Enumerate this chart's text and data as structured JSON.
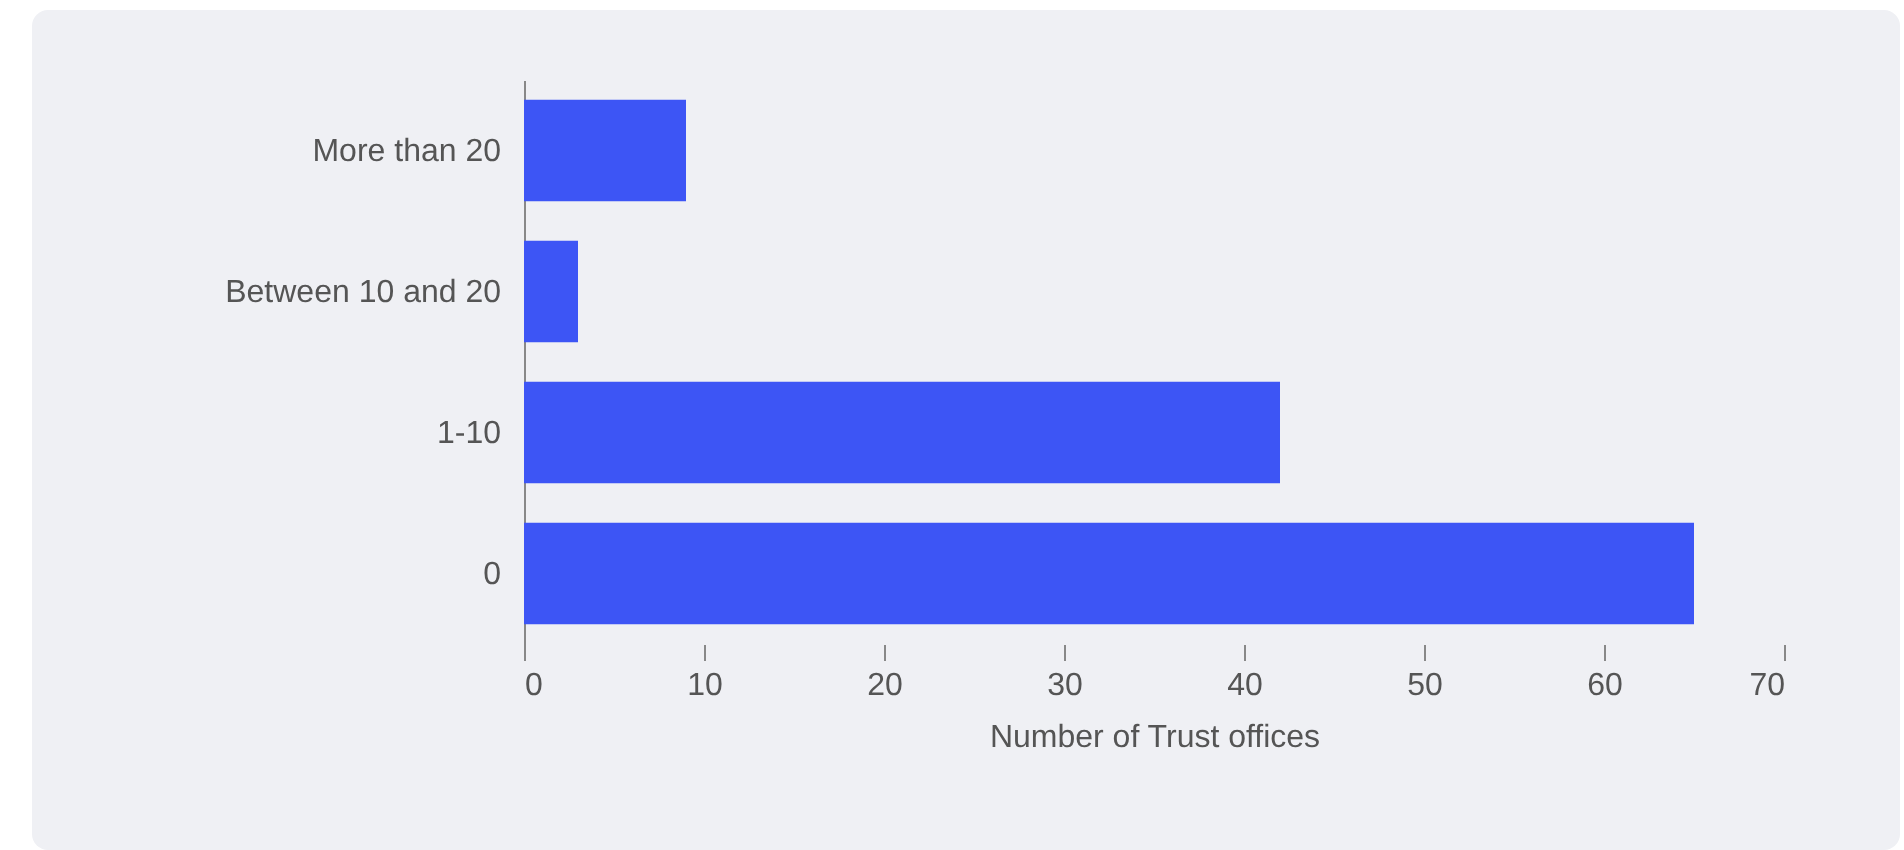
{
  "chart_data": {
    "type": "bar",
    "orientation": "horizontal",
    "xlabel": "Number of Trust offices",
    "categories": [
      "More than 20",
      "Between 10 and 20",
      "1-10",
      "0"
    ],
    "values": [
      9,
      3,
      42,
      65
    ],
    "color": "#3d55f5",
    "xlim": [
      0,
      70
    ],
    "xticks": [
      0,
      10,
      20,
      30,
      40,
      50,
      60,
      70
    ],
    "grid": false
  }
}
